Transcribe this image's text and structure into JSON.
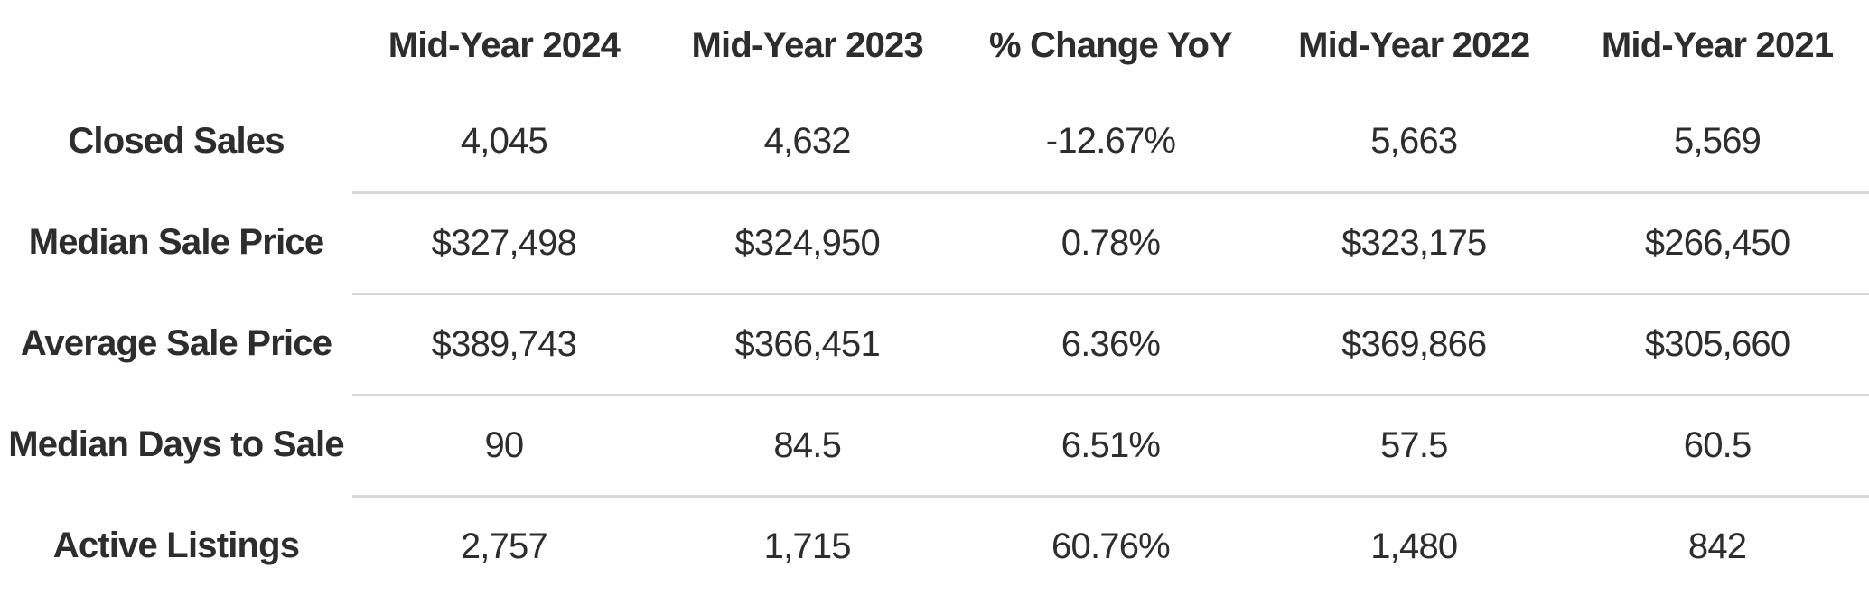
{
  "style": {
    "background": "#ffffff",
    "text_color": "#2d2d2d",
    "divider_color": "#d8d8d8"
  },
  "chart_data": {
    "type": "table",
    "columns": [
      "Mid-Year 2024",
      "Mid-Year 2023",
      "% Change YoY",
      "Mid-Year 2022",
      "Mid-Year 2021"
    ],
    "rows": [
      {
        "label": "Closed Sales",
        "values": [
          "4,045",
          "4,632",
          "-12.67%",
          "5,663",
          "5,569"
        ]
      },
      {
        "label": "Median Sale Price",
        "values": [
          "$327,498",
          "$324,950",
          "0.78%",
          "$323,175",
          "$266,450"
        ]
      },
      {
        "label": "Average Sale Price",
        "values": [
          "$389,743",
          "$366,451",
          "6.36%",
          "$369,866",
          "$305,660"
        ]
      },
      {
        "label": "Median Days to Sale",
        "values": [
          "90",
          "84.5",
          "6.51%",
          "57.5",
          "60.5"
        ]
      },
      {
        "label": "Active Listings",
        "values": [
          "2,757",
          "1,715",
          "60.76%",
          "1,480",
          "842"
        ]
      }
    ]
  }
}
